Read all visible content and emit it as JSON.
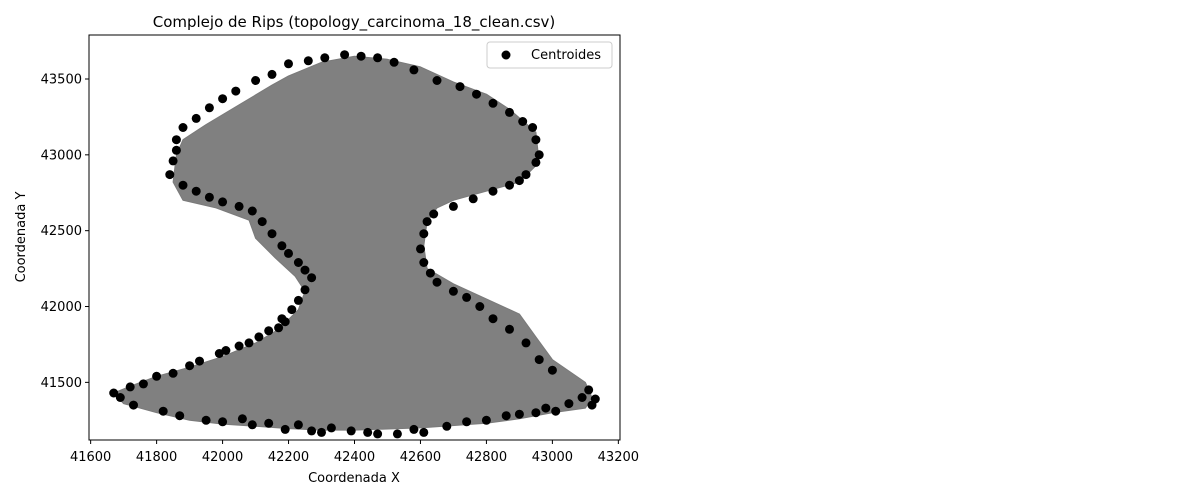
{
  "chart_data": {
    "type": "scatter",
    "title": "Complejo de Rips (topology_carcinoma_18_clean.csv)",
    "xlabel": "Coordenada X",
    "ylabel": "Coordenada Y",
    "xlim": [
      41595,
      43205
    ],
    "ylim": [
      41120,
      43790
    ],
    "xticks": [
      41600,
      41800,
      42000,
      42200,
      42400,
      42600,
      42800,
      43000,
      43200
    ],
    "yticks": [
      41500,
      42000,
      42500,
      43000,
      43500
    ],
    "legend_position": "top-right",
    "grid": false,
    "colors": {
      "points": "#000000",
      "complex_fill": "#808080",
      "axes": "#000000",
      "legend_border": "#cccccc"
    },
    "complex": {
      "label": "",
      "boundary": [
        [
          41670,
          41430
        ],
        [
          41720,
          41475
        ],
        [
          41800,
          41540
        ],
        [
          41900,
          41600
        ],
        [
          42000,
          41670
        ],
        [
          42100,
          41760
        ],
        [
          42170,
          41850
        ],
        [
          42230,
          41980
        ],
        [
          42250,
          42100
        ],
        [
          42220,
          42200
        ],
        [
          42160,
          42320
        ],
        [
          42100,
          42450
        ],
        [
          42080,
          42570
        ],
        [
          41980,
          42650
        ],
        [
          41880,
          42700
        ],
        [
          41850,
          42820
        ],
        [
          41860,
          43000
        ],
        [
          41880,
          43100
        ],
        [
          41950,
          43200
        ],
        [
          42050,
          43330
        ],
        [
          42150,
          43460
        ],
        [
          42200,
          43520
        ],
        [
          42300,
          43610
        ],
        [
          42400,
          43650
        ],
        [
          42500,
          43630
        ],
        [
          42600,
          43580
        ],
        [
          42700,
          43480
        ],
        [
          42800,
          43400
        ],
        [
          42870,
          43300
        ],
        [
          42950,
          43150
        ],
        [
          42960,
          42950
        ],
        [
          42900,
          42820
        ],
        [
          42800,
          42760
        ],
        [
          42700,
          42700
        ],
        [
          42650,
          42650
        ],
        [
          42620,
          42560
        ],
        [
          42610,
          42400
        ],
        [
          42620,
          42250
        ],
        [
          42700,
          42150
        ],
        [
          42800,
          42050
        ],
        [
          42900,
          41950
        ],
        [
          42950,
          41800
        ],
        [
          43000,
          41650
        ],
        [
          43100,
          41500
        ],
        [
          43120,
          41400
        ],
        [
          43100,
          41330
        ],
        [
          43000,
          41300
        ],
        [
          42900,
          41260
        ],
        [
          42800,
          41230
        ],
        [
          42600,
          41200
        ],
        [
          42400,
          41185
        ],
        [
          42300,
          41185
        ],
        [
          42200,
          41195
        ],
        [
          42100,
          41210
        ],
        [
          42000,
          41225
        ],
        [
          41900,
          41250
        ],
        [
          41800,
          41300
        ],
        [
          41700,
          41360
        ]
      ]
    },
    "series": [
      {
        "name": "Centroides",
        "points": [
          [
            41670,
            41430
          ],
          [
            41690,
            41400
          ],
          [
            41720,
            41470
          ],
          [
            41730,
            41350
          ],
          [
            41760,
            41490
          ],
          [
            41800,
            41540
          ],
          [
            41820,
            41310
          ],
          [
            41850,
            41560
          ],
          [
            41870,
            41280
          ],
          [
            41900,
            41610
          ],
          [
            41930,
            41640
          ],
          [
            41950,
            41250
          ],
          [
            41990,
            41690
          ],
          [
            42010,
            41710
          ],
          [
            42050,
            41740
          ],
          [
            42080,
            41760
          ],
          [
            42110,
            41800
          ],
          [
            42140,
            41840
          ],
          [
            42170,
            41860
          ],
          [
            42190,
            41900
          ],
          [
            42000,
            41240
          ],
          [
            42060,
            41260
          ],
          [
            42090,
            41220
          ],
          [
            42140,
            41230
          ],
          [
            42190,
            41190
          ],
          [
            42230,
            41220
          ],
          [
            42270,
            41180
          ],
          [
            42300,
            41170
          ],
          [
            42330,
            41200
          ],
          [
            42390,
            41180
          ],
          [
            42440,
            41170
          ],
          [
            42470,
            41160
          ],
          [
            42530,
            41160
          ],
          [
            42580,
            41190
          ],
          [
            42610,
            41170
          ],
          [
            42680,
            41210
          ],
          [
            42740,
            41240
          ],
          [
            42800,
            41250
          ],
          [
            42860,
            41280
          ],
          [
            42900,
            41290
          ],
          [
            42950,
            41300
          ],
          [
            42980,
            41330
          ],
          [
            43010,
            41310
          ],
          [
            43050,
            41360
          ],
          [
            43090,
            41400
          ],
          [
            43110,
            41450
          ],
          [
            43130,
            41390
          ],
          [
            43120,
            41350
          ],
          [
            43000,
            41580
          ],
          [
            42960,
            41650
          ],
          [
            42920,
            41760
          ],
          [
            42870,
            41850
          ],
          [
            42820,
            41920
          ],
          [
            42780,
            42000
          ],
          [
            42740,
            42060
          ],
          [
            42700,
            42100
          ],
          [
            42650,
            42160
          ],
          [
            42630,
            42220
          ],
          [
            42610,
            42290
          ],
          [
            42600,
            42380
          ],
          [
            42610,
            42480
          ],
          [
            42620,
            42560
          ],
          [
            42640,
            42610
          ],
          [
            42700,
            42660
          ],
          [
            42760,
            42710
          ],
          [
            42820,
            42760
          ],
          [
            42870,
            42800
          ],
          [
            42900,
            42830
          ],
          [
            42920,
            42870
          ],
          [
            42950,
            42950
          ],
          [
            42960,
            43000
          ],
          [
            42950,
            43100
          ],
          [
            42940,
            43180
          ],
          [
            42910,
            43220
          ],
          [
            42870,
            43280
          ],
          [
            42820,
            43340
          ],
          [
            42770,
            43400
          ],
          [
            42720,
            43450
          ],
          [
            42650,
            43490
          ],
          [
            42580,
            43560
          ],
          [
            42520,
            43610
          ],
          [
            42470,
            43640
          ],
          [
            42420,
            43650
          ],
          [
            42370,
            43660
          ],
          [
            42310,
            43640
          ],
          [
            42260,
            43620
          ],
          [
            42200,
            43600
          ],
          [
            42150,
            43530
          ],
          [
            42100,
            43490
          ],
          [
            42040,
            43420
          ],
          [
            42000,
            43370
          ],
          [
            41960,
            43310
          ],
          [
            41920,
            43240
          ],
          [
            41880,
            43180
          ],
          [
            41860,
            43100
          ],
          [
            41860,
            43030
          ],
          [
            41850,
            42960
          ],
          [
            41840,
            42870
          ],
          [
            41880,
            42800
          ],
          [
            41920,
            42760
          ],
          [
            41960,
            42720
          ],
          [
            42000,
            42690
          ],
          [
            42050,
            42660
          ],
          [
            42090,
            42630
          ],
          [
            42120,
            42560
          ],
          [
            42150,
            42480
          ],
          [
            42180,
            42400
          ],
          [
            42200,
            42350
          ],
          [
            42230,
            42290
          ],
          [
            42250,
            42240
          ],
          [
            42270,
            42190
          ],
          [
            42250,
            42110
          ],
          [
            42230,
            42040
          ],
          [
            42210,
            41980
          ],
          [
            42180,
            41920
          ]
        ]
      }
    ]
  }
}
